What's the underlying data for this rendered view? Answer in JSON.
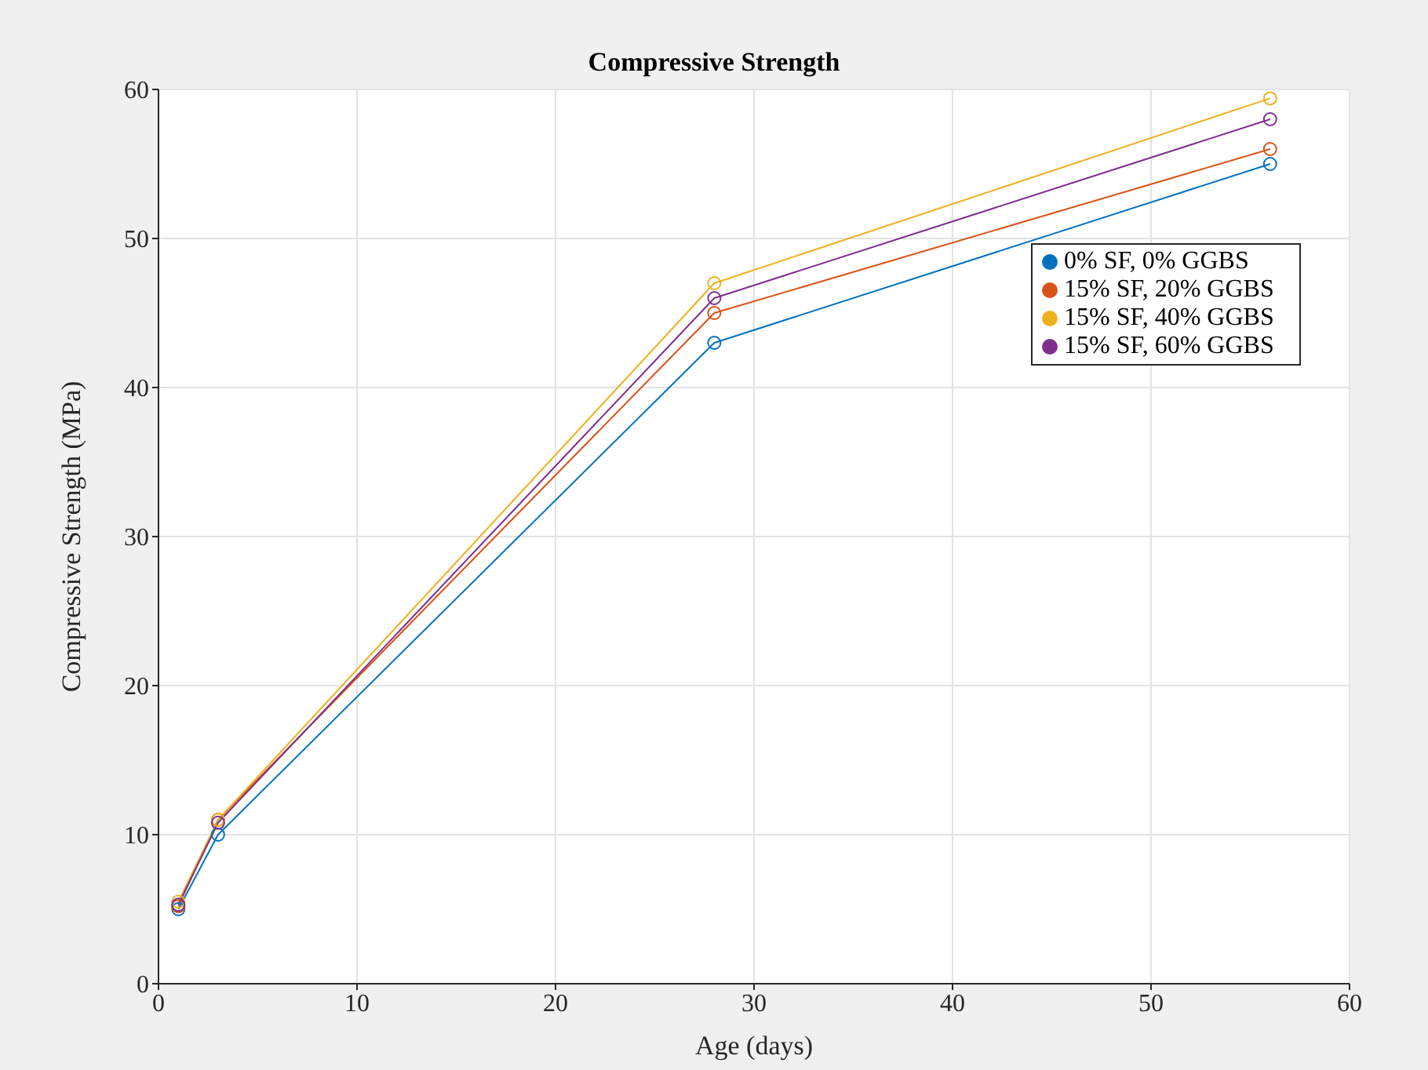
{
  "chart_data": {
    "type": "line",
    "title": "Compressive Strength",
    "xlabel": "Age (days)",
    "ylabel": "Compressive Strength (MPa)",
    "x": [
      1,
      3,
      28,
      56
    ],
    "series": [
      {
        "name": "0% SF, 0% GGBS",
        "color": "#0072bd",
        "values": [
          5,
          10,
          43,
          55
        ]
      },
      {
        "name": "15% SF, 20% GGBS",
        "color": "#d95319",
        "values": [
          5.2,
          11,
          45,
          56
        ]
      },
      {
        "name": "15% SF, 40% GGBS",
        "color": "#edb120",
        "values": [
          5.5,
          11,
          47,
          59.4
        ]
      },
      {
        "name": "15% SF, 60% GGBS",
        "color": "#7e2f8e",
        "values": [
          5.3,
          10.8,
          46,
          58
        ]
      }
    ],
    "xlim": [
      0,
      60
    ],
    "xticks": [
      0,
      10,
      20,
      30,
      40,
      50,
      60
    ],
    "ylim": [
      0,
      60
    ],
    "yticks": [
      0,
      10,
      20,
      30,
      40,
      50,
      60
    ],
    "grid": true,
    "legend": "top right",
    "marker": "circle",
    "line_style": "solid"
  }
}
